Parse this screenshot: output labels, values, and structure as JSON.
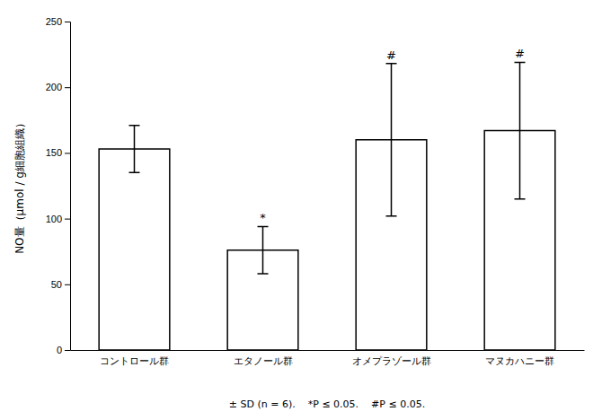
{
  "chart_data": {
    "type": "bar",
    "categories": [
      "コントロール群",
      "エタノール群",
      "オメプラゾール群",
      "マヌカハニー群"
    ],
    "values": [
      153.0,
      76.0,
      160.0,
      167.0
    ],
    "errors": [
      18.0,
      18.0,
      58.0,
      52.0
    ],
    "significance": [
      null,
      "*",
      "#",
      "#"
    ],
    "color": "#ffffff",
    "ylabel": "NO量（μmol / g細胞組織）",
    "caption": "± SD (n = 6).    *P ≤ 0.05.    #P ≤ 0.05.",
    "ylim": [
      0,
      250
    ],
    "yticks": [
      0,
      50,
      100,
      150,
      200,
      250
    ],
    "grid": false
  }
}
